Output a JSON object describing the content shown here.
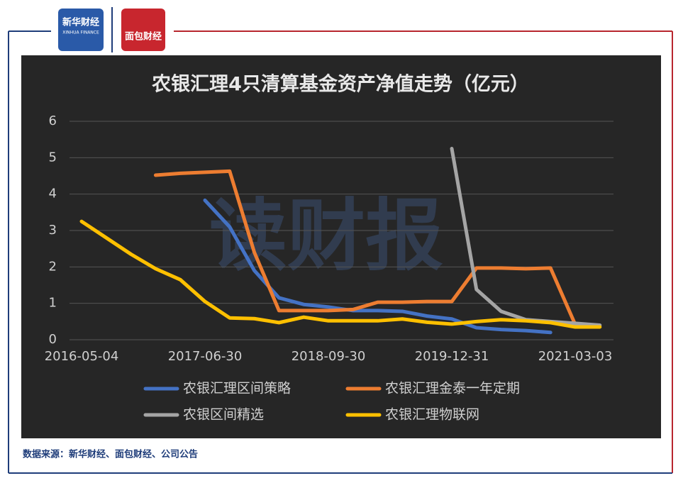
{
  "header": {
    "logo1": "新华财经",
    "logo1_sub": "XINHUA FINANCE",
    "logo2": "面包财经"
  },
  "chart_data": {
    "type": "line",
    "title": "农银汇理4只清算基金资产净值走势（亿元）",
    "watermark": "读财报",
    "categories": [
      "2016-05-04",
      null,
      null,
      null,
      null,
      "2017-06-30",
      null,
      null,
      null,
      null,
      "2018-09-30",
      null,
      null,
      null,
      null,
      "2019-12-31",
      null,
      null,
      null,
      null,
      "2021-03-03",
      null
    ],
    "series": [
      {
        "name": "农银汇理区间策略",
        "color": "#4472c4",
        "values": [
          null,
          null,
          null,
          null,
          null,
          3.83,
          3.1,
          1.9,
          1.15,
          0.97,
          0.9,
          0.8,
          0.8,
          0.78,
          0.65,
          0.57,
          0.33,
          0.28,
          0.25,
          0.2,
          null,
          null
        ]
      },
      {
        "name": "农银汇理金泰一年定期",
        "color": "#ed7d31",
        "values": [
          null,
          null,
          null,
          4.52,
          4.57,
          4.6,
          4.63,
          2.4,
          0.8,
          0.8,
          0.8,
          0.83,
          1.03,
          1.03,
          1.05,
          1.05,
          1.97,
          1.97,
          1.95,
          1.97,
          0.42,
          null
        ]
      },
      {
        "name": "农银区间精选",
        "color": "#a5a5a5",
        "values": [
          null,
          null,
          null,
          null,
          null,
          null,
          null,
          null,
          null,
          null,
          null,
          null,
          null,
          null,
          null,
          5.25,
          1.38,
          0.78,
          0.55,
          0.5,
          0.45,
          0.4
        ]
      },
      {
        "name": "农银汇理物联网",
        "color": "#ffc000",
        "values": [
          3.25,
          2.8,
          2.35,
          1.95,
          1.65,
          1.05,
          0.6,
          0.58,
          0.47,
          0.62,
          0.52,
          0.52,
          0.52,
          0.57,
          0.48,
          0.43,
          0.5,
          0.55,
          0.52,
          0.47,
          0.35,
          0.35
        ]
      }
    ],
    "ylim": [
      0,
      6
    ],
    "yticks": [
      0,
      1,
      2,
      3,
      4,
      5,
      6
    ],
    "grid": true
  },
  "source": "数据来源：新华财经、面包财经、公司公告"
}
